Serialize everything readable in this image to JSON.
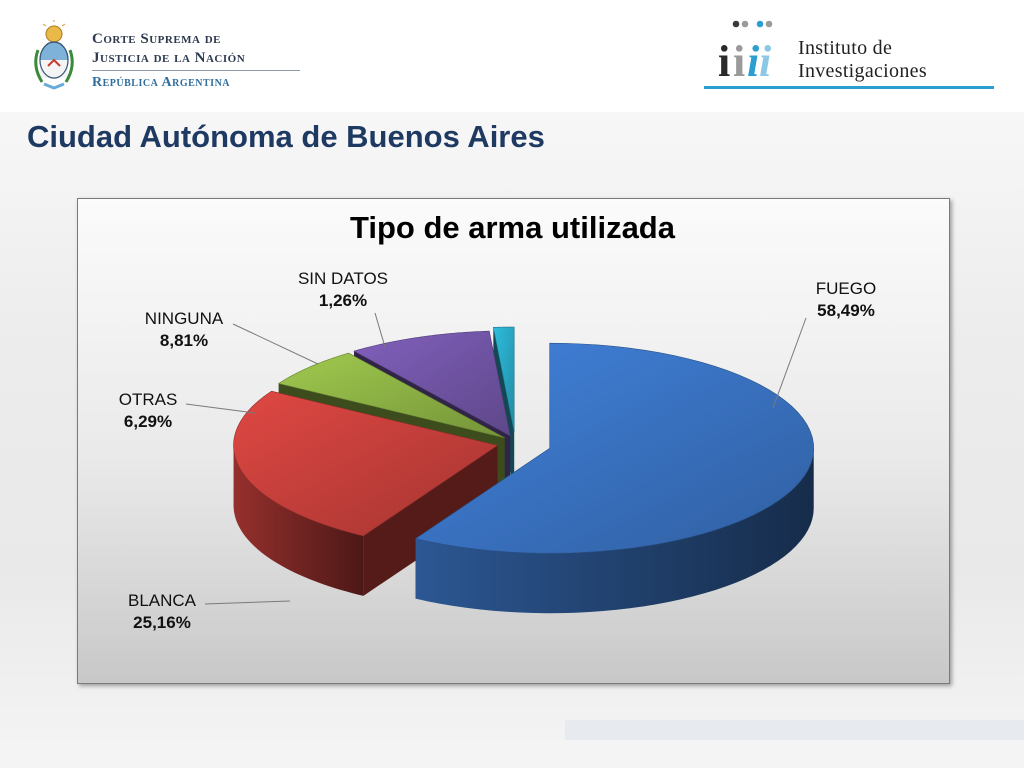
{
  "header": {
    "court_line1": "Corte Suprema de",
    "court_line2": "Justicia de la Nación",
    "court_line3": "República Argentina",
    "institute_line1": "Instituto de",
    "institute_line2": "Investigaciones",
    "institute_logo_text": "iii"
  },
  "slide": {
    "title": "Ciudad Autónoma de Buenos Aires"
  },
  "colors": {
    "title": "#1f3a62",
    "accent_blue": "#2b9fd0"
  },
  "chart_data": {
    "type": "pie",
    "title": "Tipo de arma utilizada",
    "series": [
      {
        "name": "FUEGO",
        "label": "58,49%",
        "value": 58.49,
        "color": "#3a74c4"
      },
      {
        "name": "BLANCA",
        "label": "25,16%",
        "value": 25.16,
        "color": "#c8403c"
      },
      {
        "name": "OTRAS",
        "label": "6,29%",
        "value": 6.29,
        "color": "#8fb446"
      },
      {
        "name": "NINGUNA",
        "label": "8,81%",
        "value": 8.81,
        "color": "#7356a8"
      },
      {
        "name": "SIN DATOS",
        "label": "1,26%",
        "value": 1.26,
        "color": "#2aa9c6"
      }
    ],
    "style": "3d exploded pie"
  }
}
